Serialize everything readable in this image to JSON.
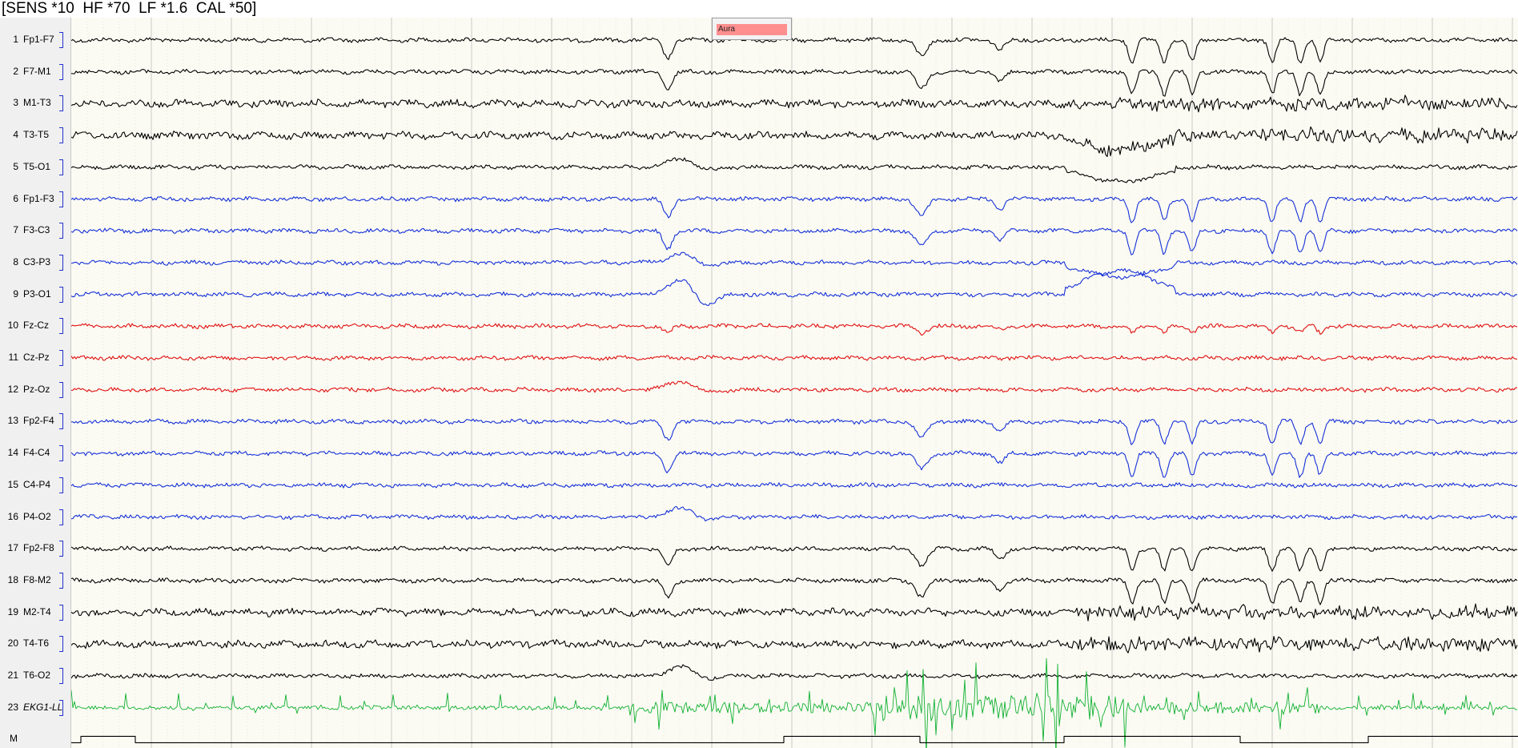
{
  "header": {
    "text": "[SENS *10  HF *70  LF *1.6  CAL *50]"
  },
  "annotation": {
    "label": "Aura",
    "color": "#ff8f8f"
  },
  "colors": {
    "background": "#fbfbf3",
    "grid": "#b8b8b8",
    "black": "#000000",
    "blue": "#1530d8",
    "red": "#e01010",
    "green": "#10b030",
    "scale_mark": "#2233cc"
  },
  "chart_data": {
    "type": "line",
    "title": "",
    "grid": true,
    "channels": [
      {
        "number": "1",
        "name": "Fp1-F7",
        "color": "black"
      },
      {
        "number": "2",
        "name": "F7-M1",
        "color": "black"
      },
      {
        "number": "3",
        "name": "M1-T3",
        "color": "black"
      },
      {
        "number": "4",
        "name": "T3-T5",
        "color": "black"
      },
      {
        "number": "5",
        "name": "T5-O1",
        "color": "black"
      },
      {
        "number": "6",
        "name": "Fp1-F3",
        "color": "blue"
      },
      {
        "number": "7",
        "name": "F3-C3",
        "color": "blue"
      },
      {
        "number": "8",
        "name": "C3-P3",
        "color": "blue"
      },
      {
        "number": "9",
        "name": "P3-O1",
        "color": "blue"
      },
      {
        "number": "10",
        "name": "Fz-Cz",
        "color": "red"
      },
      {
        "number": "11",
        "name": "Cz-Pz",
        "color": "red"
      },
      {
        "number": "12",
        "name": "Pz-Oz",
        "color": "red"
      },
      {
        "number": "13",
        "name": "Fp2-F4",
        "color": "blue"
      },
      {
        "number": "14",
        "name": "F4-C4",
        "color": "blue"
      },
      {
        "number": "15",
        "name": "C4-P4",
        "color": "blue"
      },
      {
        "number": "16",
        "name": "P4-O2",
        "color": "blue"
      },
      {
        "number": "17",
        "name": "Fp2-F8",
        "color": "black"
      },
      {
        "number": "18",
        "name": "F8-M2",
        "color": "black"
      },
      {
        "number": "19",
        "name": "M2-T4",
        "color": "black"
      },
      {
        "number": "20",
        "name": "T4-T6",
        "color": "black"
      },
      {
        "number": "21",
        "name": "T6-O2",
        "color": "black"
      },
      {
        "number": "23",
        "name": "EKG1-LL",
        "color": "green"
      },
      {
        "number": "",
        "name": "M",
        "color": "black"
      }
    ]
  }
}
